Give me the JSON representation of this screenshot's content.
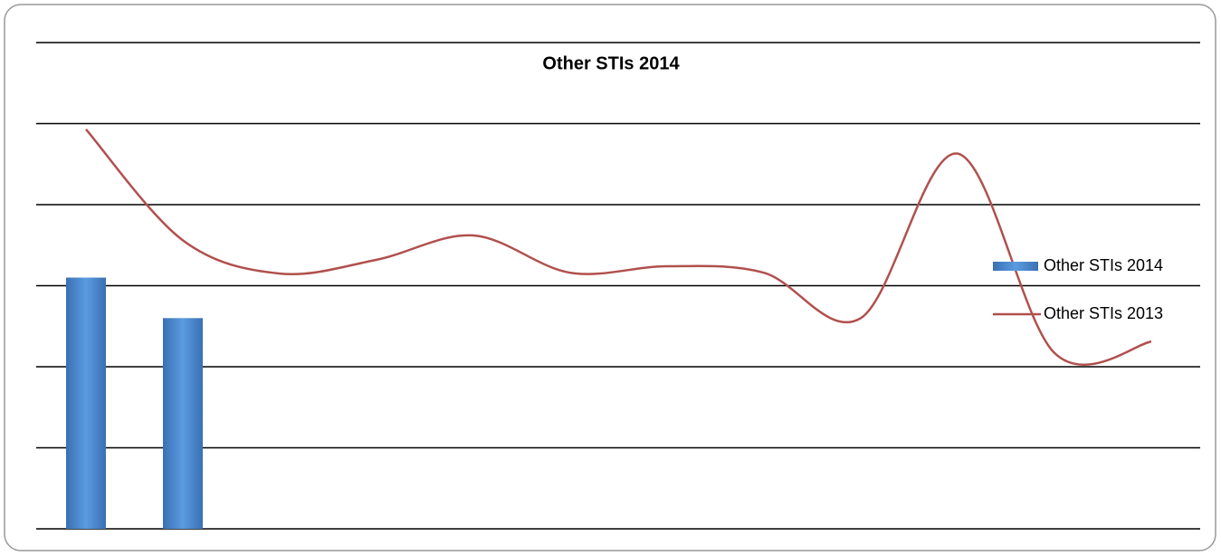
{
  "chart_data": {
    "type": "bar",
    "title": "Other STIs 2014",
    "categories": [
      null,
      null,
      null,
      null,
      null,
      null,
      null,
      null,
      null,
      null,
      null,
      null
    ],
    "series": [
      {
        "name": "Other STIs 2014",
        "type": "bar",
        "color": "#4f8fd6",
        "values": [
          3.1,
          2.6,
          null,
          null,
          null,
          null,
          null,
          null,
          null,
          null,
          null,
          null
        ]
      },
      {
        "name": "Other STIs 2013",
        "type": "line",
        "color": "#b0504d",
        "values": [
          4.93,
          3.56,
          3.15,
          3.32,
          3.62,
          3.16,
          3.24,
          3.16,
          2.6,
          4.63,
          2.17,
          2.31
        ]
      }
    ],
    "ylim": [
      0,
      6
    ],
    "yticks": [
      0,
      1,
      2,
      3,
      4,
      5,
      6
    ],
    "grid": true,
    "legend": "right"
  }
}
